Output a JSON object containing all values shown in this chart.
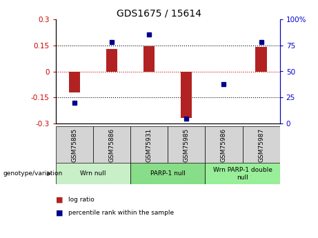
{
  "title": "GDS1675 / 15614",
  "samples": [
    "GSM75885",
    "GSM75886",
    "GSM75931",
    "GSM75985",
    "GSM75986",
    "GSM75987"
  ],
  "log_ratio": [
    -0.12,
    0.13,
    0.145,
    -0.265,
    0.0,
    0.14
  ],
  "percentile_rank": [
    20,
    78,
    85,
    5,
    38,
    78
  ],
  "ylim_left": [
    -0.3,
    0.3
  ],
  "ylim_right": [
    0,
    100
  ],
  "yticks_left": [
    -0.3,
    -0.15,
    0,
    0.15,
    0.3
  ],
  "yticks_right": [
    0,
    25,
    50,
    75,
    100
  ],
  "hlines": [
    -0.15,
    0.0,
    0.15
  ],
  "hline_colors": [
    "black",
    "#cc0000",
    "black"
  ],
  "hline_styles": [
    "dotted",
    "dotted",
    "dotted"
  ],
  "bar_color": "#b22222",
  "dot_color": "#00008b",
  "groups": [
    {
      "label": "Wrn null",
      "start": 0,
      "end": 2,
      "color": "#c8efc8"
    },
    {
      "label": "PARP-1 null",
      "start": 2,
      "end": 4,
      "color": "#88dd88"
    },
    {
      "label": "Wrn PARP-1 double\nnull",
      "start": 4,
      "end": 6,
      "color": "#99ee99"
    }
  ],
  "genotype_label": "genotype/variation",
  "legend_items": [
    {
      "label": "log ratio",
      "color": "#b22222"
    },
    {
      "label": "percentile rank within the sample",
      "color": "#00008b"
    }
  ],
  "sample_box_color": "#d4d4d4",
  "left_tick_color": "#cc0000",
  "right_tick_color": "#0000cc",
  "bar_width": 0.3,
  "dot_size": 5
}
